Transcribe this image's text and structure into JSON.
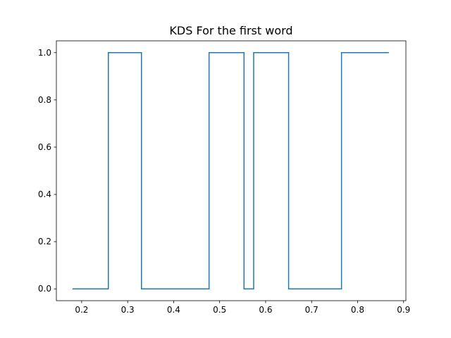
{
  "chart_data": {
    "type": "line",
    "title": "KDS For the first word",
    "xlabel": "",
    "ylabel": "",
    "xlim": [
      0.145,
      0.905
    ],
    "ylim": [
      -0.05,
      1.05
    ],
    "xticks": [
      0.2,
      0.3,
      0.4,
      0.5,
      0.6,
      0.7,
      0.8,
      0.9
    ],
    "xtick_labels": [
      "0.2",
      "0.3",
      "0.4",
      "0.5",
      "0.6",
      "0.7",
      "0.8",
      "0.9"
    ],
    "yticks": [
      0.0,
      0.2,
      0.4,
      0.6,
      0.8,
      1.0
    ],
    "ytick_labels": [
      "0.0",
      "0.2",
      "0.4",
      "0.6",
      "0.8",
      "1.0"
    ],
    "grid": false,
    "line_color": "#1f77b4",
    "series": [
      {
        "x": [
          0.18,
          0.258,
          0.258,
          0.33,
          0.33,
          0.477,
          0.477,
          0.553,
          0.553,
          0.574,
          0.574,
          0.65,
          0.65,
          0.765,
          0.765,
          0.868
        ],
        "y": [
          0,
          0,
          1,
          1,
          0,
          0,
          1,
          1,
          0,
          0,
          1,
          1,
          0,
          0,
          1,
          1
        ]
      }
    ]
  }
}
